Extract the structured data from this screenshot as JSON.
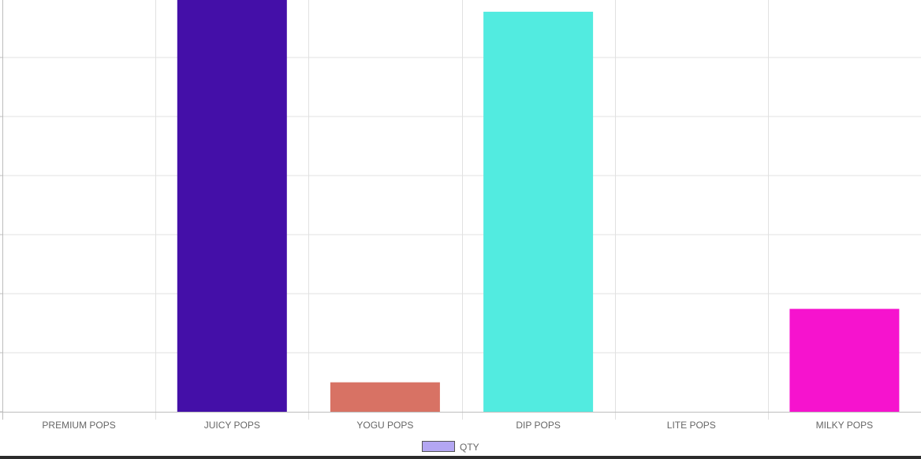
{
  "chart_data": {
    "type": "bar",
    "categories": [
      "PREMIUM POPS",
      "JUICY POPS",
      "YOGU POPS",
      "DIP POPS",
      "LITE POPS",
      "MILKY POPS"
    ],
    "series": [
      {
        "name": "QTY",
        "values": [
          0,
          1400,
          100,
          1360,
          0,
          350
        ],
        "colors": [
          "#cccccc",
          "#440fa8",
          "#d87264",
          "#52ebe0",
          "#cccccc",
          "#f613ce"
        ]
      }
    ],
    "ylim": [
      0,
      1400
    ],
    "grid": true,
    "legend_position": "bottom",
    "legend_color": "#b3a6f2",
    "legend_border": "#555555",
    "gridline_color": "#e1e1e1",
    "axis_color": "#bdbdbd",
    "label_color": "#666666"
  }
}
